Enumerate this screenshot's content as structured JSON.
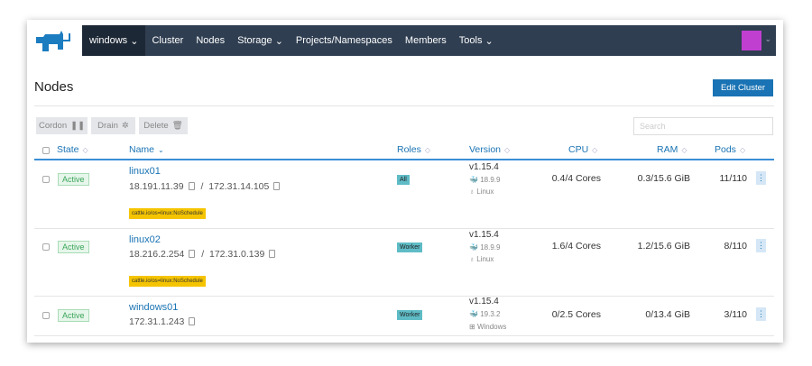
{
  "nav": {
    "cluster": "windows",
    "items": [
      "Cluster",
      "Nodes",
      "Storage",
      "Projects/Namespaces",
      "Members",
      "Tools"
    ],
    "dropdowns": [
      false,
      false,
      true,
      false,
      false,
      true
    ]
  },
  "page": {
    "title": "Nodes",
    "edit_button": "Edit Cluster"
  },
  "actions": {
    "cordon": "Cordon",
    "drain": "Drain",
    "delete": "Delete"
  },
  "search": {
    "placeholder": "Search"
  },
  "columns": [
    "State",
    "Name",
    "Roles",
    "Version",
    "CPU",
    "RAM",
    "Pods"
  ],
  "rows": [
    {
      "state": "Active",
      "name": "linux01",
      "ips": [
        "18.191.11.39",
        "172.31.14.105"
      ],
      "taint": "cattle.io/os=linux:NoSchedule",
      "role": "All",
      "version": "v1.15.4",
      "docker": "18.9.9",
      "os": "Linux",
      "cpu": "0.4/4 Cores",
      "ram": "0.3/15.6 GiB",
      "pods": "11/110"
    },
    {
      "state": "Active",
      "name": "linux02",
      "ips": [
        "18.216.2.254",
        "172.31.0.139"
      ],
      "taint": "cattle.io/os=linux:NoSchedule",
      "role": "Worker",
      "version": "v1.15.4",
      "docker": "18.9.9",
      "os": "Linux",
      "cpu": "1.6/4 Cores",
      "ram": "1.2/15.6 GiB",
      "pods": "8/110"
    },
    {
      "state": "Active",
      "name": "windows01",
      "ips": [
        "172.31.1.243"
      ],
      "role": "Worker",
      "version": "v1.15.4",
      "docker": "19.3.2",
      "os": "Windows",
      "cpu": "0/2.5 Cores",
      "ram": "0/13.4 GiB",
      "pods": "3/110"
    }
  ],
  "colors": {
    "nav": "#2f3e51",
    "accent": "#1a73b4",
    "taint": "#f5c400",
    "role": "#5fbcc6"
  }
}
